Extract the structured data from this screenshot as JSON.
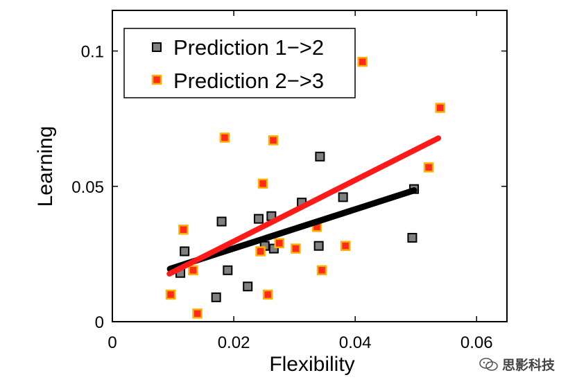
{
  "chart_data": {
    "type": "scatter",
    "title": "",
    "xlabel": "Flexibility",
    "ylabel": "Learning",
    "xlim": [
      0,
      0.065
    ],
    "ylim": [
      0,
      0.115
    ],
    "xticks": [
      0,
      0.02,
      0.04,
      0.06
    ],
    "xtick_labels": [
      "0",
      "0.02",
      "0.04",
      "0.06"
    ],
    "yticks": [
      0,
      0.05,
      0.1
    ],
    "ytick_labels": [
      "0",
      "0.05",
      "0.1"
    ],
    "grid": false,
    "legend_position": "top-left",
    "series": [
      {
        "name": "Prediction 1−>2",
        "marker_fill": "#808080",
        "marker_edge": "#000000",
        "line_color": "#000000",
        "x": [
          0.0112,
          0.0119,
          0.0171,
          0.018,
          0.019,
          0.0223,
          0.0241,
          0.0251,
          0.0262,
          0.0266,
          0.0312,
          0.034,
          0.0342,
          0.038,
          0.0494,
          0.0497
        ],
        "y": [
          0.018,
          0.026,
          0.009,
          0.037,
          0.019,
          0.013,
          0.038,
          0.028,
          0.039,
          0.027,
          0.044,
          0.028,
          0.061,
          0.046,
          0.031,
          0.049
        ],
        "fit": {
          "x": [
            0.0095,
            0.0497
          ],
          "y": [
            0.0195,
            0.0485
          ]
        }
      },
      {
        "name": "Prediction 2−>3",
        "marker_fill": "#ff2a1a",
        "marker_edge": "#ffb000",
        "line_color": "#ff1a1a",
        "x": [
          0.0096,
          0.0117,
          0.0133,
          0.014,
          0.0185,
          0.0244,
          0.0248,
          0.0256,
          0.0265,
          0.0275,
          0.0302,
          0.0337,
          0.0345,
          0.0384,
          0.0412,
          0.0521,
          0.054
        ],
        "y": [
          0.01,
          0.034,
          0.019,
          0.003,
          0.068,
          0.026,
          0.051,
          0.01,
          0.067,
          0.029,
          0.027,
          0.035,
          0.019,
          0.028,
          0.096,
          0.057,
          0.079
        ],
        "fit": {
          "x": [
            0.0094,
            0.0537
          ],
          "y": [
            0.0177,
            0.0678
          ]
        }
      }
    ]
  },
  "watermark": {
    "text": "思影科技",
    "icon": "wechat-icon"
  }
}
